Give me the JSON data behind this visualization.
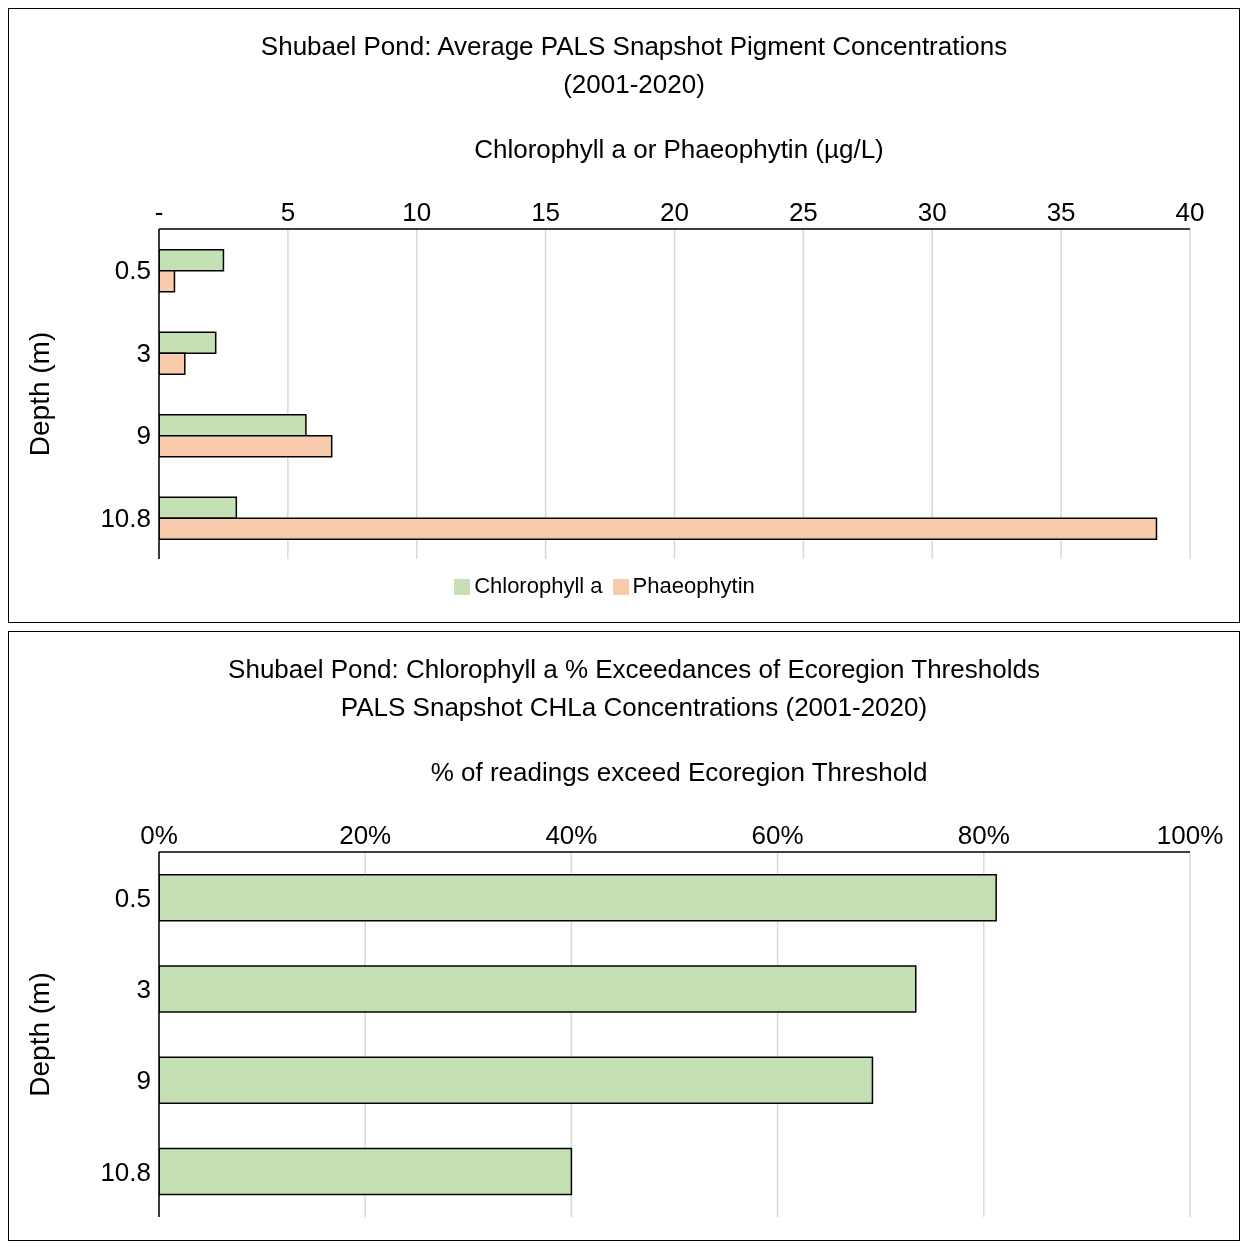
{
  "chart_data": [
    {
      "type": "bar",
      "orientation": "horizontal",
      "title": "Shubael Pond:  Average PALS Snapshot Pigment Concentrations\n(2001-2020)",
      "xlabel": "Chlorophyll a or Phaeophytin (µg/L)",
      "ylabel": "Depth (m)",
      "categories": [
        "0.5",
        "3",
        "9",
        "10.8"
      ],
      "series": [
        {
          "name": "Chlorophyll a",
          "color": "#c5e0b4",
          "values": [
            2.5,
            2.2,
            5.7,
            3.0
          ]
        },
        {
          "name": "Phaeophytin",
          "color": "#f8cbad",
          "values": [
            0.6,
            1.0,
            6.7,
            38.7
          ]
        }
      ],
      "xlim": [
        0,
        40
      ],
      "xticks": [
        {
          "value": 0,
          "label": "-"
        },
        5,
        10,
        15,
        20,
        25,
        30,
        35,
        40
      ],
      "grid": "x",
      "legend": "bottom"
    },
    {
      "type": "bar",
      "orientation": "horizontal",
      "title": "Shubael Pond:  Chlorophyll a % Exceedances of Ecoregion Thresholds\nPALS Snapshot CHLa Concentrations (2001-2020)",
      "xlabel": "% of readings exceed Ecoregion Threshold",
      "ylabel": "Depth (m)",
      "categories": [
        "0.5",
        "3",
        "9",
        "10.8"
      ],
      "series": [
        {
          "color": "#c5e0b4",
          "values": [
            81.2,
            73.4,
            69.2,
            40
          ]
        }
      ],
      "xlim": [
        0,
        100
      ],
      "xticks": [
        {
          "value": 0,
          "label": "0%"
        },
        {
          "value": 20,
          "label": "20%"
        },
        {
          "value": 40,
          "label": "40%"
        },
        {
          "value": 60,
          "label": "60%"
        },
        {
          "value": 80,
          "label": "80%"
        },
        {
          "value": 100,
          "label": "100%"
        }
      ],
      "grid": "x",
      "legend": false
    }
  ]
}
